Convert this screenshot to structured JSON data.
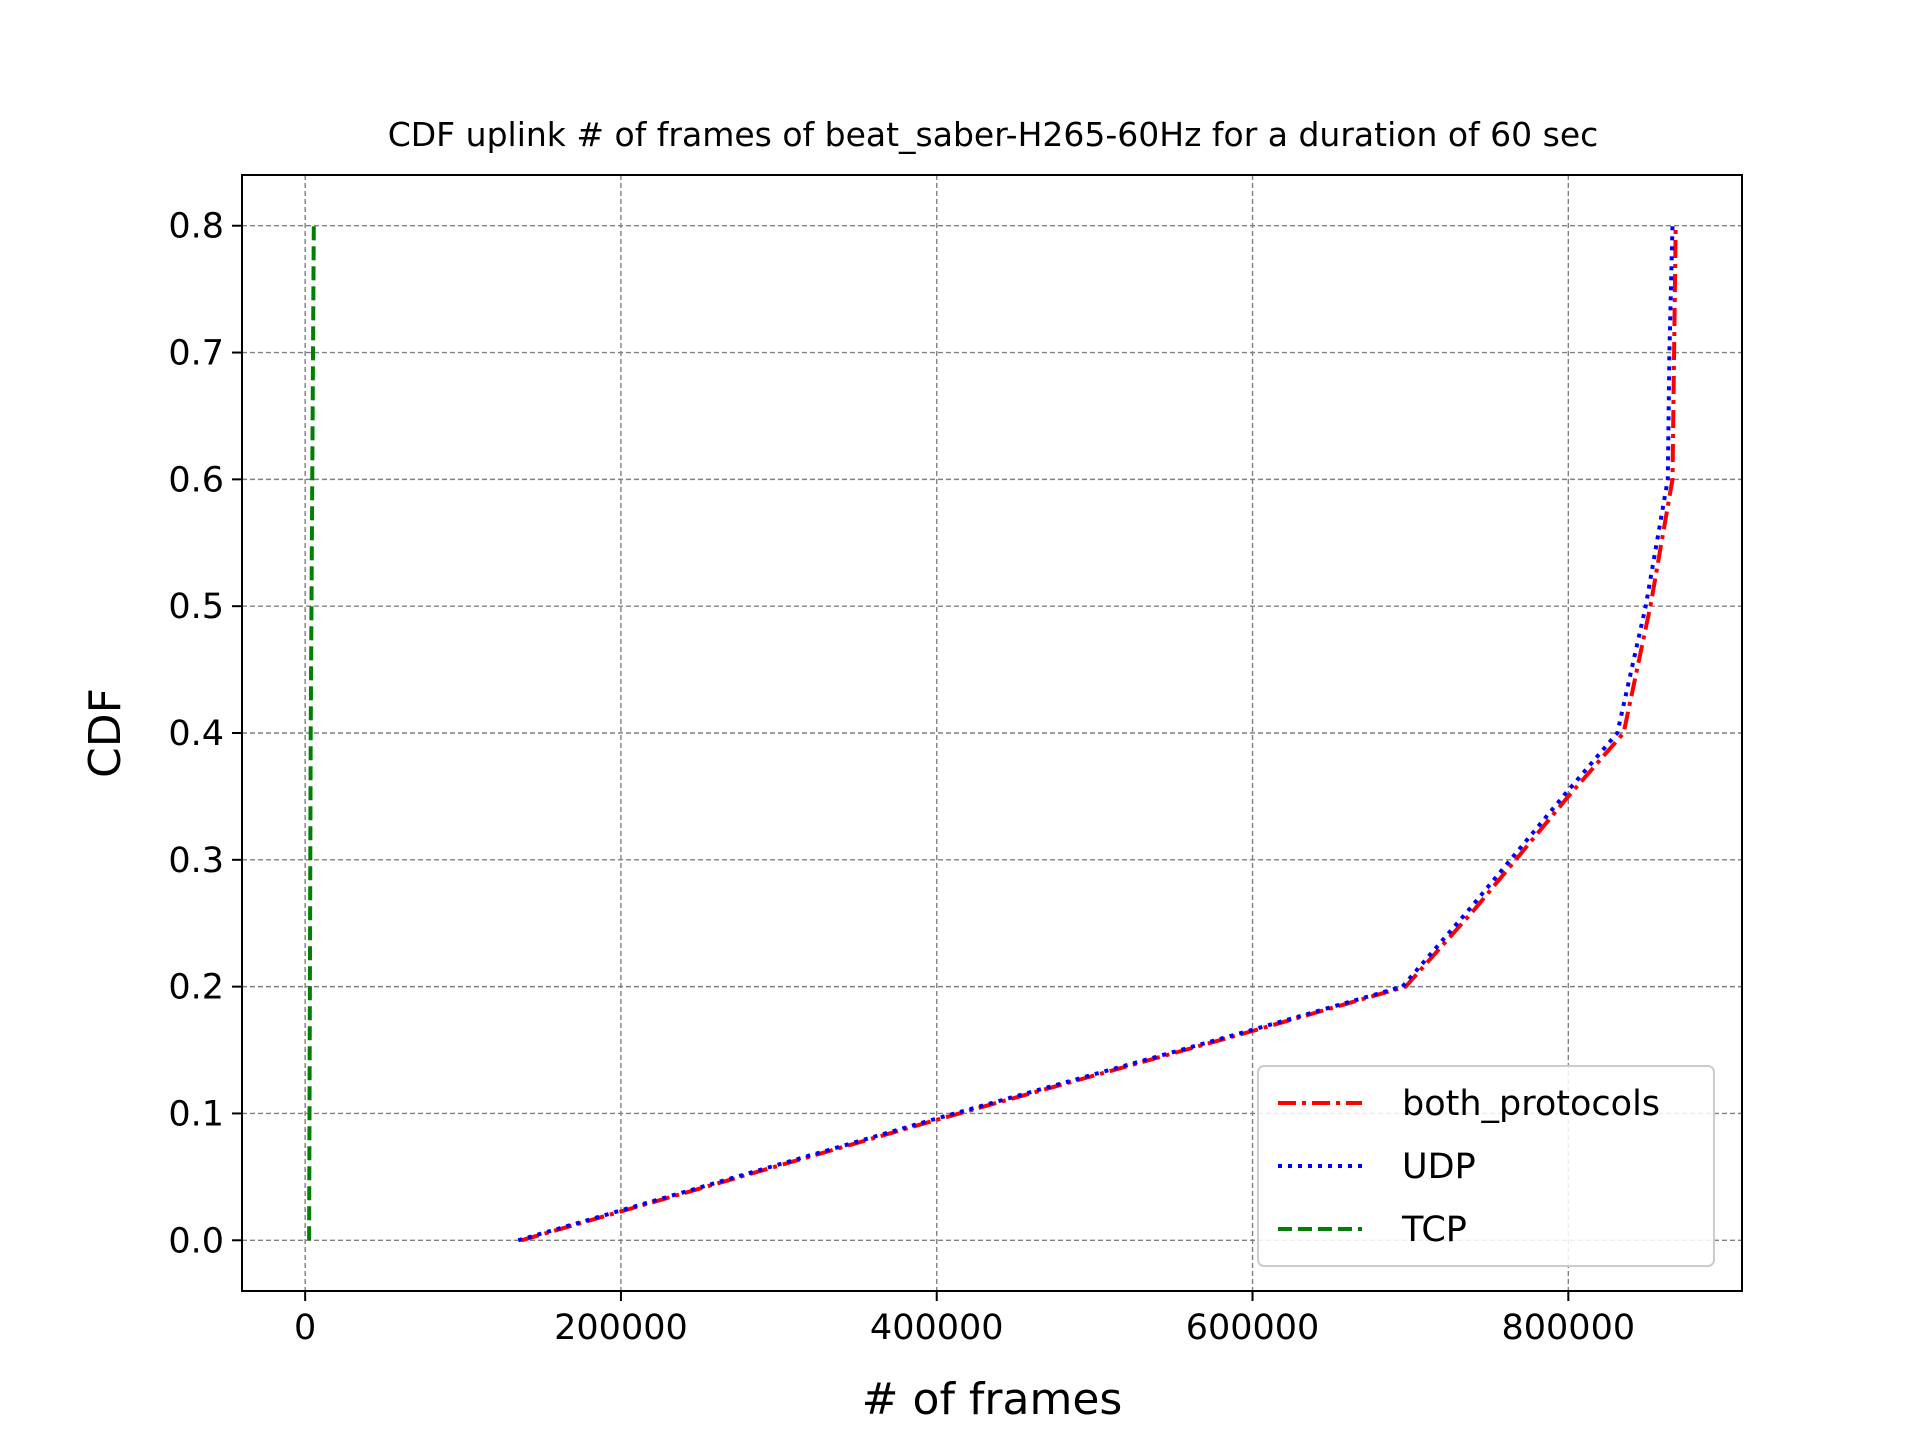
{
  "chart_data": {
    "type": "line",
    "title": "CDF uplink # of frames of beat_saber-H265-60Hz for a duration of 60 sec",
    "xlabel": "# of frames",
    "ylabel": "CDF",
    "xlim": [
      -40000,
      910000
    ],
    "ylim": [
      -0.04,
      0.84
    ],
    "xticks": [
      0,
      200000,
      400000,
      600000,
      800000
    ],
    "xtick_labels": [
      "0",
      "200000",
      "400000",
      "600000",
      "800000"
    ],
    "yticks": [
      0.0,
      0.1,
      0.2,
      0.3,
      0.4,
      0.5,
      0.6,
      0.7,
      0.8
    ],
    "ytick_labels": [
      "0.0",
      "0.1",
      "0.2",
      "0.3",
      "0.4",
      "0.5",
      "0.6",
      "0.7",
      "0.8"
    ],
    "grid": true,
    "legend_position": "bottom-right",
    "series": [
      {
        "name": "both_protocols",
        "color": "#ff0000",
        "style": "dashdot",
        "points": [
          [
            137000,
            0.0
          ],
          [
            400000,
            0.095
          ],
          [
            600000,
            0.165
          ],
          [
            697000,
            0.2
          ],
          [
            740000,
            0.26
          ],
          [
            800000,
            0.35
          ],
          [
            835000,
            0.4
          ],
          [
            852000,
            0.5
          ],
          [
            866000,
            0.6
          ],
          [
            867000,
            0.7
          ],
          [
            868000,
            0.8
          ]
        ]
      },
      {
        "name": "UDP",
        "color": "#0000ff",
        "style": "dotted",
        "points": [
          [
            135000,
            0.0
          ],
          [
            400000,
            0.096
          ],
          [
            600000,
            0.166
          ],
          [
            695000,
            0.2
          ],
          [
            738000,
            0.262
          ],
          [
            798000,
            0.352
          ],
          [
            831000,
            0.4
          ],
          [
            849000,
            0.5
          ],
          [
            863000,
            0.6
          ],
          [
            864000,
            0.7
          ],
          [
            866000,
            0.8
          ]
        ]
      },
      {
        "name": "TCP",
        "color": "#008000",
        "style": "dashed",
        "points": [
          [
            2500,
            0.0
          ],
          [
            3500,
            0.4
          ],
          [
            5500,
            0.8
          ]
        ]
      }
    ]
  }
}
